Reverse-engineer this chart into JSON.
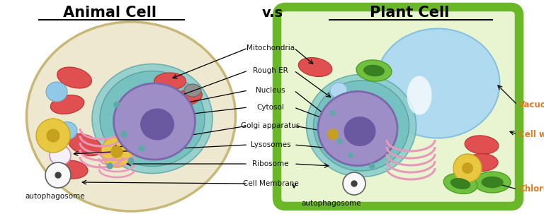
{
  "title_animal": "Animal Cell",
  "title_vs": "v.s",
  "title_plant": "Plant Cell",
  "bg_color": "#ffffff"
}
